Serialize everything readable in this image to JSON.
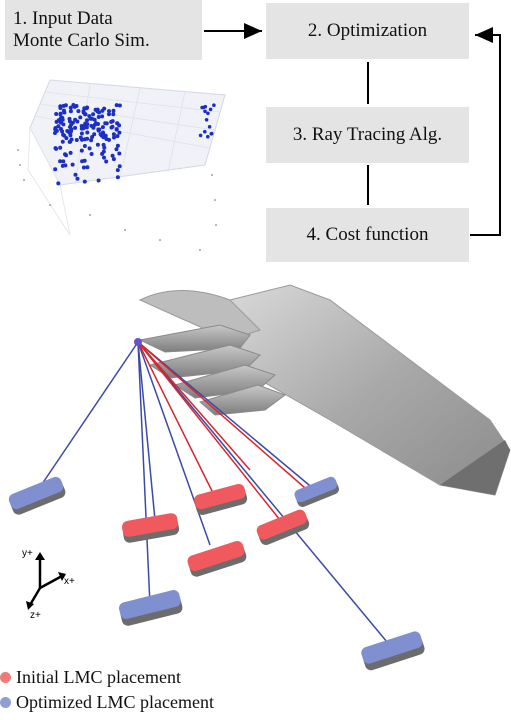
{
  "flowchart": {
    "step1": {
      "line1": "1. Input Data",
      "line2": "Monte Carlo Sim."
    },
    "step2": "2. Optimization",
    "step3": "3. Ray Tracing Alg.",
    "step4": "4. Cost function"
  },
  "axes_gizmo": {
    "y": "y+",
    "x": "x+",
    "z": "z+"
  },
  "legend": [
    {
      "label": "Initial LMC placement",
      "color": "#f07a7a"
    },
    {
      "label": "Optimized LMC placement",
      "color": "#8e9fd6"
    }
  ],
  "colors": {
    "box_fill": "#e4e4e4",
    "initial_ray": "#d9262a",
    "optimized_ray": "#3b4aa8",
    "initial_sensor": "#f05a5f",
    "optimized_sensor": "#7f8fd0",
    "scatter_points": "#1c2fc4"
  }
}
